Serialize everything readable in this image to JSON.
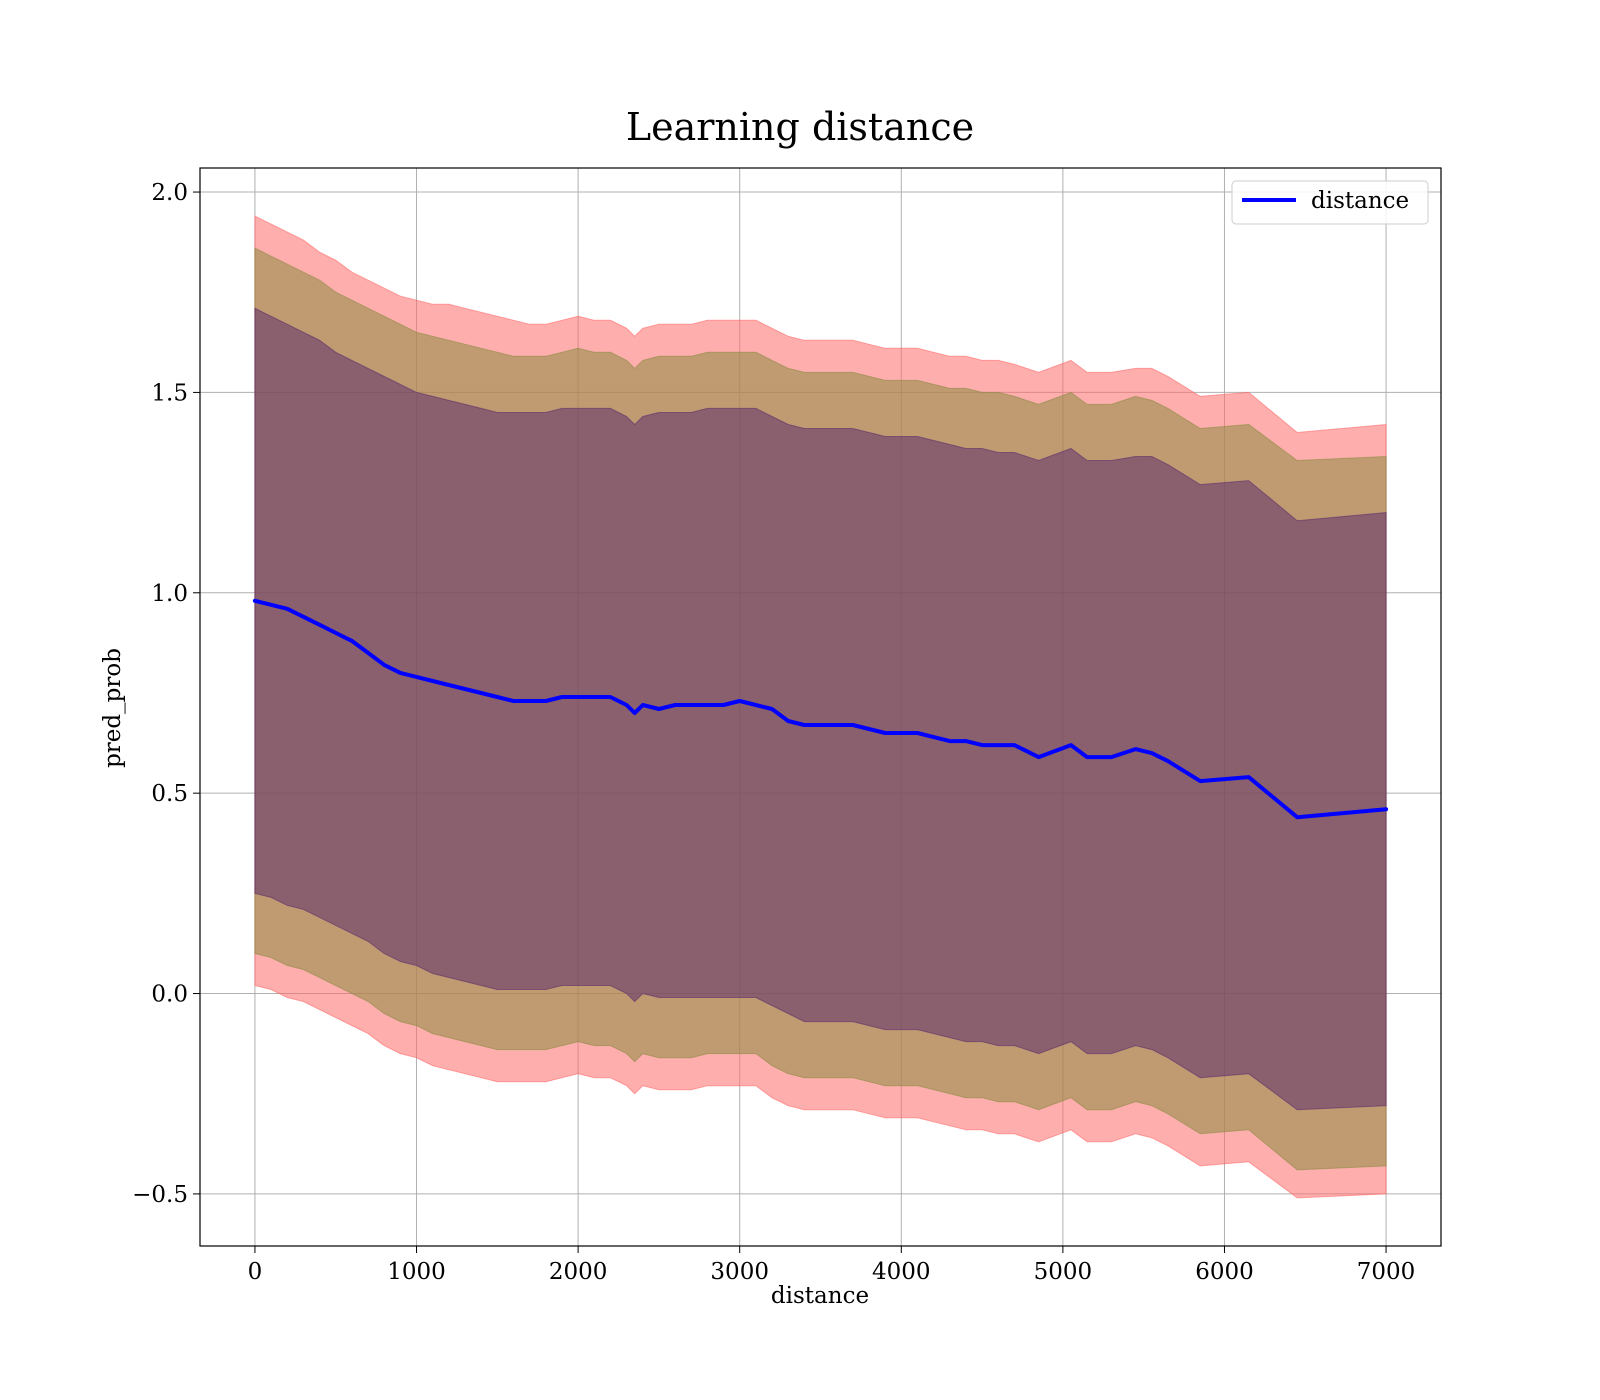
{
  "chart_data": {
    "type": "area",
    "title": "Learning distance",
    "xlabel": "distance",
    "ylabel": "pred_prob",
    "xlim": [
      -340,
      7340
    ],
    "ylim": [
      -0.63,
      2.06
    ],
    "xticks": [
      0,
      1000,
      2000,
      3000,
      4000,
      5000,
      6000,
      7000
    ],
    "xtick_labels": [
      "0",
      "1000",
      "2000",
      "3000",
      "4000",
      "5000",
      "6000",
      "7000"
    ],
    "yticks": [
      -0.5,
      0.0,
      0.5,
      1.0,
      1.5,
      2.0
    ],
    "ytick_labels": [
      "−0.5",
      "0.0",
      "0.5",
      "1.0",
      "1.5",
      "2.0"
    ],
    "grid": true,
    "legend": {
      "position": "top-right",
      "entries": [
        "distance"
      ]
    },
    "colors": {
      "line": "#0000ff",
      "band_outer": "#ff6b6b",
      "band_middle": "#8c8c42",
      "band_inner": "#5d2e6b"
    },
    "x": [
      0,
      100,
      200,
      300,
      400,
      500,
      600,
      700,
      800,
      900,
      1000,
      1100,
      1200,
      1300,
      1400,
      1500,
      1600,
      1700,
      1800,
      1900,
      2000,
      2100,
      2200,
      2300,
      2350,
      2400,
      2500,
      2600,
      2700,
      2800,
      2900,
      3000,
      3100,
      3200,
      3300,
      3400,
      3500,
      3600,
      3700,
      3800,
      3900,
      4000,
      4100,
      4200,
      4300,
      4400,
      4500,
      4600,
      4700,
      4850,
      5050,
      5150,
      5300,
      5450,
      5550,
      5650,
      5850,
      6150,
      6450,
      7000
    ],
    "series": [
      {
        "name": "distance",
        "values": [
          0.98,
          0.97,
          0.96,
          0.94,
          0.92,
          0.9,
          0.88,
          0.85,
          0.82,
          0.8,
          0.79,
          0.78,
          0.77,
          0.76,
          0.75,
          0.74,
          0.73,
          0.73,
          0.73,
          0.74,
          0.74,
          0.74,
          0.74,
          0.72,
          0.7,
          0.72,
          0.71,
          0.72,
          0.72,
          0.72,
          0.72,
          0.73,
          0.72,
          0.71,
          0.68,
          0.67,
          0.67,
          0.67,
          0.67,
          0.66,
          0.65,
          0.65,
          0.65,
          0.64,
          0.63,
          0.63,
          0.62,
          0.62,
          0.62,
          0.59,
          0.62,
          0.59,
          0.59,
          0.61,
          0.6,
          0.58,
          0.53,
          0.54,
          0.44,
          0.46
        ]
      },
      {
        "name": "band_outer_upper",
        "values": [
          1.94,
          1.92,
          1.9,
          1.88,
          1.85,
          1.83,
          1.8,
          1.78,
          1.76,
          1.74,
          1.73,
          1.72,
          1.72,
          1.71,
          1.7,
          1.69,
          1.68,
          1.67,
          1.67,
          1.68,
          1.69,
          1.68,
          1.68,
          1.66,
          1.64,
          1.66,
          1.67,
          1.67,
          1.67,
          1.68,
          1.68,
          1.68,
          1.68,
          1.66,
          1.64,
          1.63,
          1.63,
          1.63,
          1.63,
          1.62,
          1.61,
          1.61,
          1.61,
          1.6,
          1.59,
          1.59,
          1.58,
          1.58,
          1.57,
          1.55,
          1.58,
          1.55,
          1.55,
          1.56,
          1.56,
          1.54,
          1.49,
          1.5,
          1.4,
          1.42
        ]
      },
      {
        "name": "band_middle_upper",
        "values": [
          1.86,
          1.84,
          1.82,
          1.8,
          1.78,
          1.75,
          1.73,
          1.71,
          1.69,
          1.67,
          1.65,
          1.64,
          1.63,
          1.62,
          1.61,
          1.6,
          1.59,
          1.59,
          1.59,
          1.6,
          1.61,
          1.6,
          1.6,
          1.58,
          1.56,
          1.58,
          1.59,
          1.59,
          1.59,
          1.6,
          1.6,
          1.6,
          1.6,
          1.58,
          1.56,
          1.55,
          1.55,
          1.55,
          1.55,
          1.54,
          1.53,
          1.53,
          1.53,
          1.52,
          1.51,
          1.51,
          1.5,
          1.5,
          1.49,
          1.47,
          1.5,
          1.47,
          1.47,
          1.49,
          1.48,
          1.46,
          1.41,
          1.42,
          1.33,
          1.34
        ]
      },
      {
        "name": "band_inner_upper",
        "values": [
          1.71,
          1.69,
          1.67,
          1.65,
          1.63,
          1.6,
          1.58,
          1.56,
          1.54,
          1.52,
          1.5,
          1.49,
          1.48,
          1.47,
          1.46,
          1.45,
          1.45,
          1.45,
          1.45,
          1.46,
          1.46,
          1.46,
          1.46,
          1.44,
          1.42,
          1.44,
          1.45,
          1.45,
          1.45,
          1.46,
          1.46,
          1.46,
          1.46,
          1.44,
          1.42,
          1.41,
          1.41,
          1.41,
          1.41,
          1.4,
          1.39,
          1.39,
          1.39,
          1.38,
          1.37,
          1.36,
          1.36,
          1.35,
          1.35,
          1.33,
          1.36,
          1.33,
          1.33,
          1.34,
          1.34,
          1.32,
          1.27,
          1.28,
          1.18,
          1.2
        ]
      },
      {
        "name": "band_inner_lower",
        "values": [
          0.25,
          0.24,
          0.22,
          0.21,
          0.19,
          0.17,
          0.15,
          0.13,
          0.1,
          0.08,
          0.07,
          0.05,
          0.04,
          0.03,
          0.02,
          0.01,
          0.01,
          0.01,
          0.01,
          0.02,
          0.02,
          0.02,
          0.02,
          0.0,
          -0.02,
          0.0,
          -0.01,
          -0.01,
          -0.01,
          -0.01,
          -0.01,
          -0.01,
          -0.01,
          -0.03,
          -0.05,
          -0.07,
          -0.07,
          -0.07,
          -0.07,
          -0.08,
          -0.09,
          -0.09,
          -0.09,
          -0.1,
          -0.11,
          -0.12,
          -0.12,
          -0.13,
          -0.13,
          -0.15,
          -0.12,
          -0.15,
          -0.15,
          -0.13,
          -0.14,
          -0.16,
          -0.21,
          -0.2,
          -0.29,
          -0.28
        ]
      },
      {
        "name": "band_middle_lower",
        "values": [
          0.1,
          0.09,
          0.07,
          0.06,
          0.04,
          0.02,
          0.0,
          -0.02,
          -0.05,
          -0.07,
          -0.08,
          -0.1,
          -0.11,
          -0.12,
          -0.13,
          -0.14,
          -0.14,
          -0.14,
          -0.14,
          -0.13,
          -0.12,
          -0.13,
          -0.13,
          -0.15,
          -0.17,
          -0.15,
          -0.16,
          -0.16,
          -0.16,
          -0.15,
          -0.15,
          -0.15,
          -0.15,
          -0.18,
          -0.2,
          -0.21,
          -0.21,
          -0.21,
          -0.21,
          -0.22,
          -0.23,
          -0.23,
          -0.23,
          -0.24,
          -0.25,
          -0.26,
          -0.26,
          -0.27,
          -0.27,
          -0.29,
          -0.26,
          -0.29,
          -0.29,
          -0.27,
          -0.28,
          -0.3,
          -0.35,
          -0.34,
          -0.44,
          -0.43
        ]
      },
      {
        "name": "band_outer_lower",
        "values": [
          0.02,
          0.01,
          -0.01,
          -0.02,
          -0.04,
          -0.06,
          -0.08,
          -0.1,
          -0.13,
          -0.15,
          -0.16,
          -0.18,
          -0.19,
          -0.2,
          -0.21,
          -0.22,
          -0.22,
          -0.22,
          -0.22,
          -0.21,
          -0.2,
          -0.21,
          -0.21,
          -0.23,
          -0.25,
          -0.23,
          -0.24,
          -0.24,
          -0.24,
          -0.23,
          -0.23,
          -0.23,
          -0.23,
          -0.26,
          -0.28,
          -0.29,
          -0.29,
          -0.29,
          -0.29,
          -0.3,
          -0.31,
          -0.31,
          -0.31,
          -0.32,
          -0.33,
          -0.34,
          -0.34,
          -0.35,
          -0.35,
          -0.37,
          -0.34,
          -0.37,
          -0.37,
          -0.35,
          -0.36,
          -0.38,
          -0.43,
          -0.42,
          -0.51,
          -0.5
        ]
      }
    ]
  }
}
